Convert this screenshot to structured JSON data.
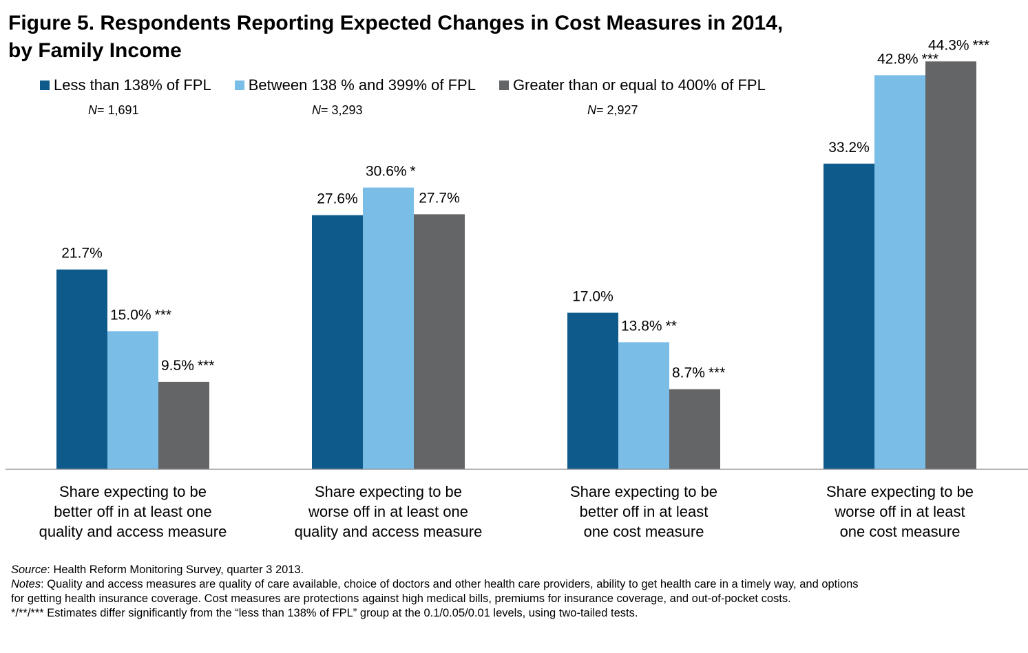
{
  "title": {
    "line1": "Figure 5. Respondents Reporting Expected Changes in Cost Measures in 2014,",
    "line2": "by Family Income"
  },
  "sample_sizes": [
    {
      "prefix": "N",
      "value": "= 1,691"
    },
    {
      "prefix": "N",
      "value": "= 3,293"
    },
    {
      "prefix": "N",
      "value": "= 2,927"
    }
  ],
  "footer": {
    "source_label": "Source",
    "source_text": ": Health Reform Monitoring Survey, quarter 3 2013.",
    "notes_label": "Notes",
    "notes_text": ": Quality and access measures are quality of care available, choice of doctors and other health care providers, ability to get health care in a timely way, and options for getting health insurance coverage. Cost measures are protections against high medical bills, premiums for insurance coverage, and out-of-pocket costs.",
    "significance_text": "*/**/*** Estimates differ significantly from the “less than 138% of FPL” group at the 0.1/0.05/0.01 levels, using two-tailed tests."
  },
  "chart_data": {
    "type": "bar",
    "categories": [
      "Share expecting to be better off in at least one quality and access measure",
      "Share expecting to be worse off in at least one quality and access measure",
      "Share expecting to be better off in at least one cost measure",
      "Share expecting to be worse off in at least one cost measure"
    ],
    "category_lines": [
      [
        "Share expecting to be",
        "better off in at least one",
        "quality and access measure"
      ],
      [
        "Share expecting to be",
        "worse off in at least one",
        "quality and access measure"
      ],
      [
        "Share expecting to be",
        "better off in at least",
        "one cost measure"
      ],
      [
        "Share expecting to be",
        "worse off in at least",
        "one cost measure"
      ]
    ],
    "series": [
      {
        "name": "Less than 138% of FPL",
        "color": "#0e5a8a",
        "values": [
          21.7,
          27.6,
          17.0,
          33.2
        ],
        "labels": [
          "21.7%",
          "27.6%",
          "17.0%",
          "33.2%"
        ],
        "sig": [
          "",
          "",
          "",
          ""
        ]
      },
      {
        "name": "Between 138 % and 399% of FPL",
        "color": "#7abde6",
        "values": [
          15.0,
          30.6,
          13.8,
          42.8
        ],
        "labels": [
          "15.0%",
          "30.6%",
          "13.8%",
          "42.8%"
        ],
        "sig": [
          "***",
          "*",
          "**",
          "***"
        ]
      },
      {
        "name": "Greater than or equal to 400% of FPL",
        "color": "#646567",
        "values": [
          9.5,
          27.7,
          8.7,
          44.3
        ],
        "labels": [
          "9.5%",
          "27.7%",
          "8.7%",
          "44.3%"
        ],
        "sig": [
          "***",
          "",
          "***",
          "***"
        ]
      }
    ],
    "ylim": [
      0,
      45
    ],
    "grid": false,
    "legend_position": "top-left"
  }
}
